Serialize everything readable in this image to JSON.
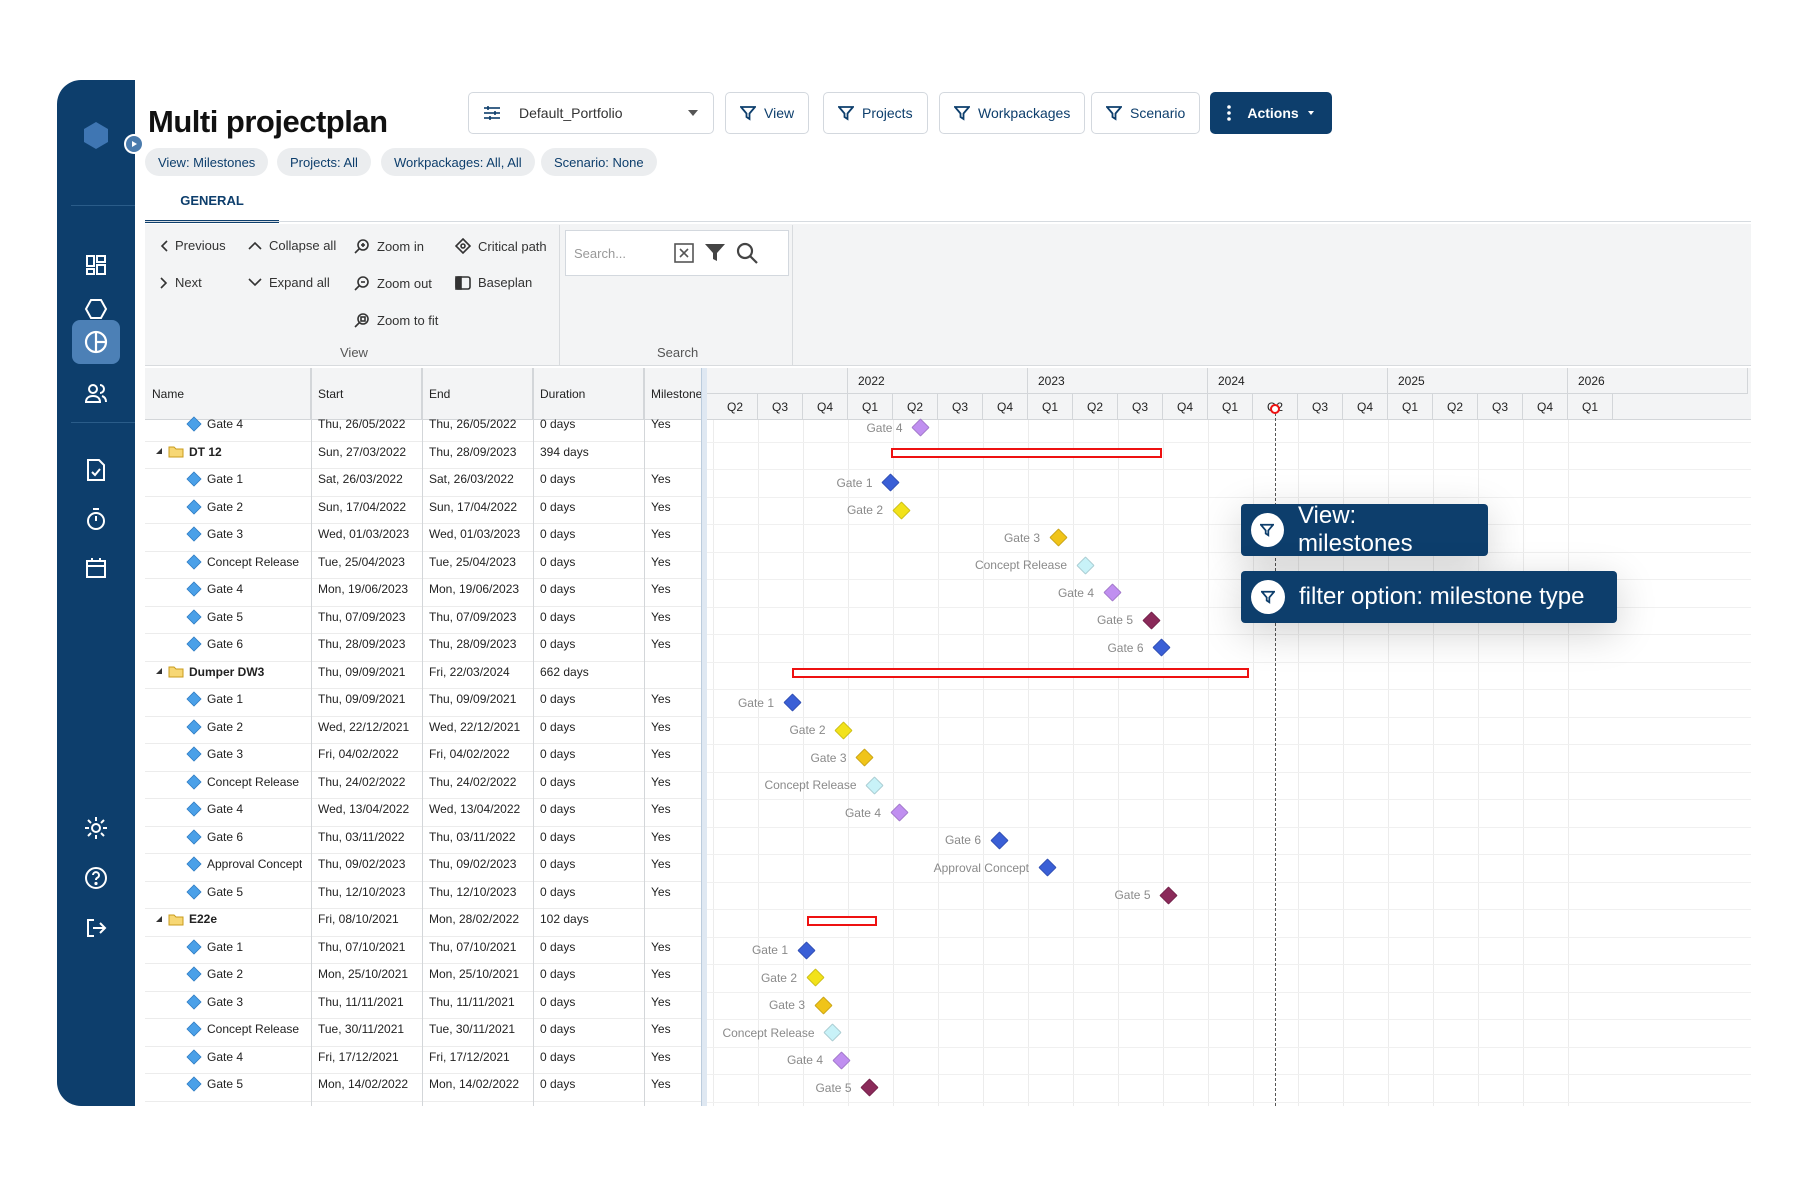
{
  "app": {
    "title": "Multi projectplan"
  },
  "toolbar": {
    "portfolio": "Default_Portfolio",
    "view": "View",
    "projects": "Projects",
    "workpackages": "Workpackages",
    "scenario": "Scenario",
    "actions": "Actions"
  },
  "chips": {
    "view": "View: Milestones",
    "projects": "Projects: All",
    "workpackages": "Workpackages: All, All",
    "scenario": "Scenario: None"
  },
  "tabs": {
    "general": "GENERAL"
  },
  "ribbon": {
    "previous": "Previous",
    "next": "Next",
    "collapse_all": "Collapse all",
    "expand_all": "Expand all",
    "zoom_in": "Zoom in",
    "zoom_out": "Zoom out",
    "zoom_to_fit": "Zoom to fit",
    "critical_path": "Critical path",
    "baseplan": "Baseplan",
    "view_group": "View",
    "search_group": "Search",
    "search_placeholder": "Search..."
  },
  "columns": {
    "name": "Name",
    "start": "Start",
    "end": "End",
    "duration": "Duration",
    "milestone": "Milestone"
  },
  "rows": [
    {
      "type": "ms",
      "name": "Gate 4",
      "start": "Thu, 26/05/2022",
      "end": "Thu, 26/05/2022",
      "duration": "0 days",
      "milestone": "Yes"
    },
    {
      "type": "grp",
      "name": "DT 12",
      "start": "Sun, 27/03/2022",
      "end": "Thu, 28/09/2023",
      "duration": "394 days",
      "milestone": ""
    },
    {
      "type": "ms",
      "name": "Gate 1",
      "start": "Sat, 26/03/2022",
      "end": "Sat, 26/03/2022",
      "duration": "0 days",
      "milestone": "Yes"
    },
    {
      "type": "ms",
      "name": "Gate 2",
      "start": "Sun, 17/04/2022",
      "end": "Sun, 17/04/2022",
      "duration": "0 days",
      "milestone": "Yes"
    },
    {
      "type": "ms",
      "name": "Gate 3",
      "start": "Wed, 01/03/2023",
      "end": "Wed, 01/03/2023",
      "duration": "0 days",
      "milestone": "Yes"
    },
    {
      "type": "ms",
      "name": "Concept Release",
      "start": "Tue, 25/04/2023",
      "end": "Tue, 25/04/2023",
      "duration": "0 days",
      "milestone": "Yes"
    },
    {
      "type": "ms",
      "name": "Gate 4",
      "start": "Mon, 19/06/2023",
      "end": "Mon, 19/06/2023",
      "duration": "0 days",
      "milestone": "Yes"
    },
    {
      "type": "ms",
      "name": "Gate 5",
      "start": "Thu, 07/09/2023",
      "end": "Thu, 07/09/2023",
      "duration": "0 days",
      "milestone": "Yes"
    },
    {
      "type": "ms",
      "name": "Gate 6",
      "start": "Thu, 28/09/2023",
      "end": "Thu, 28/09/2023",
      "duration": "0 days",
      "milestone": "Yes"
    },
    {
      "type": "grp",
      "name": "Dumper DW3",
      "start": "Thu, 09/09/2021",
      "end": "Fri, 22/03/2024",
      "duration": "662 days",
      "milestone": ""
    },
    {
      "type": "ms",
      "name": "Gate 1",
      "start": "Thu, 09/09/2021",
      "end": "Thu, 09/09/2021",
      "duration": "0 days",
      "milestone": "Yes"
    },
    {
      "type": "ms",
      "name": "Gate 2",
      "start": "Wed, 22/12/2021",
      "end": "Wed, 22/12/2021",
      "duration": "0 days",
      "milestone": "Yes"
    },
    {
      "type": "ms",
      "name": "Gate 3",
      "start": "Fri, 04/02/2022",
      "end": "Fri, 04/02/2022",
      "duration": "0 days",
      "milestone": "Yes"
    },
    {
      "type": "ms",
      "name": "Concept Release",
      "start": "Thu, 24/02/2022",
      "end": "Thu, 24/02/2022",
      "duration": "0 days",
      "milestone": "Yes"
    },
    {
      "type": "ms",
      "name": "Gate 4",
      "start": "Wed, 13/04/2022",
      "end": "Wed, 13/04/2022",
      "duration": "0 days",
      "milestone": "Yes"
    },
    {
      "type": "ms",
      "name": "Gate 6",
      "start": "Thu, 03/11/2022",
      "end": "Thu, 03/11/2022",
      "duration": "0 days",
      "milestone": "Yes"
    },
    {
      "type": "ms",
      "name": "Approval Concept",
      "start": "Thu, 09/02/2023",
      "end": "Thu, 09/02/2023",
      "duration": "0 days",
      "milestone": "Yes"
    },
    {
      "type": "ms",
      "name": "Gate 5",
      "start": "Thu, 12/10/2023",
      "end": "Thu, 12/10/2023",
      "duration": "0 days",
      "milestone": "Yes"
    },
    {
      "type": "grp",
      "name": "E22e",
      "start": "Fri, 08/10/2021",
      "end": "Mon, 28/02/2022",
      "duration": "102 days",
      "milestone": ""
    },
    {
      "type": "ms",
      "name": "Gate 1",
      "start": "Thu, 07/10/2021",
      "end": "Thu, 07/10/2021",
      "duration": "0 days",
      "milestone": "Yes"
    },
    {
      "type": "ms",
      "name": "Gate 2",
      "start": "Mon, 25/10/2021",
      "end": "Mon, 25/10/2021",
      "duration": "0 days",
      "milestone": "Yes"
    },
    {
      "type": "ms",
      "name": "Gate 3",
      "start": "Thu, 11/11/2021",
      "end": "Thu, 11/11/2021",
      "duration": "0 days",
      "milestone": "Yes"
    },
    {
      "type": "ms",
      "name": "Concept Release",
      "start": "Tue, 30/11/2021",
      "end": "Tue, 30/11/2021",
      "duration": "0 days",
      "milestone": "Yes"
    },
    {
      "type": "ms",
      "name": "Gate 4",
      "start": "Fri, 17/12/2021",
      "end": "Fri, 17/12/2021",
      "duration": "0 days",
      "milestone": "Yes"
    },
    {
      "type": "ms",
      "name": "Gate 5",
      "start": "Mon, 14/02/2022",
      "end": "Mon, 14/02/2022",
      "duration": "0 days",
      "milestone": "Yes"
    }
  ],
  "timeline": {
    "years": [
      "2022",
      "2023",
      "2024",
      "2025",
      "2026"
    ],
    "quarters": [
      "Q2",
      "Q3",
      "Q4",
      "Q1",
      "Q2",
      "Q3",
      "Q4",
      "Q1",
      "Q2",
      "Q3",
      "Q4",
      "Q1",
      "Q2",
      "Q3",
      "Q4",
      "Q1",
      "Q2",
      "Q3",
      "Q4",
      "Q1"
    ]
  },
  "gantt_labels": [
    "Gate 4",
    "Gate 1",
    "Gate 2",
    "Gate 3",
    "Concept Release",
    "Gate 4",
    "Gate 5",
    "Gate 6",
    "Gate 1",
    "Gate 2",
    "Gate 3",
    "Concept Release",
    "Gate 4",
    "Gate 6",
    "Approval Concept",
    "Gate 5",
    "Gate 1",
    "Gate 2",
    "Gate 3",
    "Concept Release",
    "Gate 4",
    "Gate 5"
  ],
  "milestone_colors": {
    "gate1": "#3a5fd6",
    "gate2": "#f2e21a",
    "gate3": "#f0c419",
    "concept": "#c8f2f8",
    "gate4": "#c08ff0",
    "gate5": "#8b2a5a",
    "gate6": "#3a5fd6",
    "approval": "#3a5fd6"
  },
  "callouts": {
    "first": "View: milestones",
    "second": "filter option: milestone type"
  }
}
